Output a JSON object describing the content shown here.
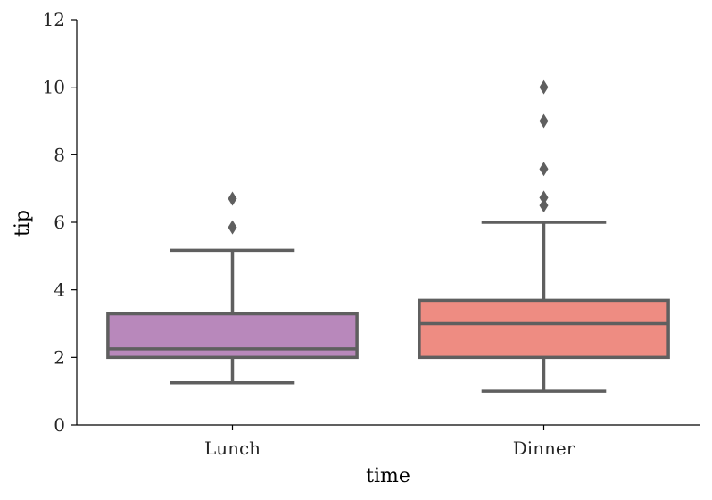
{
  "chart_data": {
    "type": "box",
    "xlabel": "time",
    "ylabel": "tip",
    "ylim": [
      0,
      12
    ],
    "yticks": [
      0,
      2,
      4,
      6,
      8,
      10,
      12
    ],
    "categories": [
      "Lunch",
      "Dinner"
    ],
    "series": [
      {
        "category": "Lunch",
        "color": "#b888bb",
        "whisker_low": 1.25,
        "q1": 2.0,
        "median": 2.25,
        "q3": 3.29,
        "whisker_high": 5.17,
        "outliers": [
          5.85,
          6.7
        ]
      },
      {
        "category": "Dinner",
        "color": "#ee8c82",
        "whisker_low": 1.0,
        "q1": 2.0,
        "median": 3.0,
        "q3": 3.69,
        "whisker_high": 6.0,
        "outliers": [
          6.5,
          6.73,
          7.58,
          9.0,
          10.0
        ]
      }
    ],
    "edge_color": "#5f5f5f"
  }
}
